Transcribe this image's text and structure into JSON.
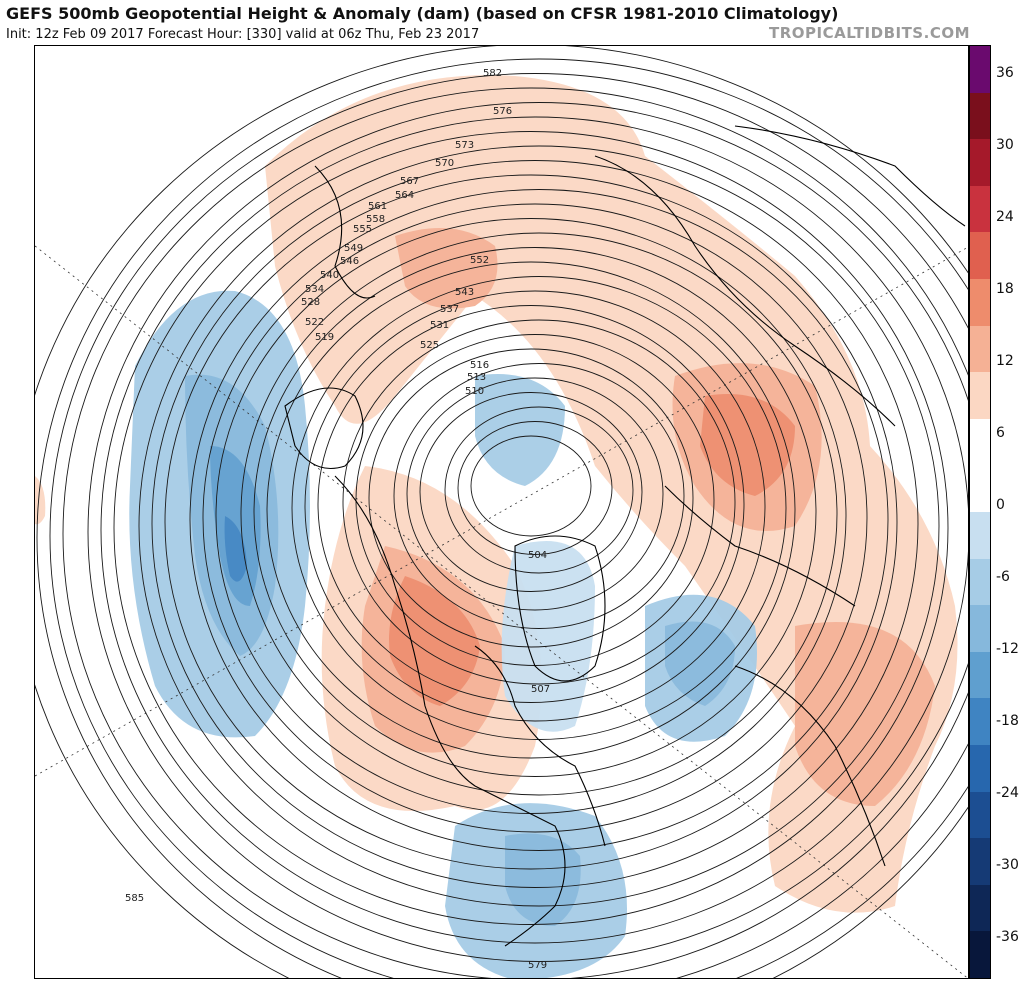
{
  "header": {
    "title": "GEFS 500mb Geopotential Height & Anomaly (dam) (based on CFSR 1981-2010 Climatology)",
    "subtitle": "Init: 12z Feb 09 2017   Forecast Hour: [330]   valid at 06z Thu, Feb 23 2017",
    "brand": "TROPICALTIDBITS.COM"
  },
  "colorbar": {
    "ticks": [
      "36",
      "30",
      "24",
      "18",
      "12",
      "6",
      "0",
      "-6",
      "-12",
      "-18",
      "-24",
      "-30",
      "-36"
    ],
    "colors": [
      "#6a0a6e",
      "#7a0f1c",
      "#a5192a",
      "#c9323e",
      "#e0604f",
      "#ee8c6c",
      "#f5b195",
      "#fbd7c3",
      "#ffffff",
      "#ffffff",
      "#c8dff0",
      "#a6cce6",
      "#86b8dc",
      "#5f9fcf",
      "#3f84c2",
      "#2767ae",
      "#1c4e92",
      "#153a75",
      "#0e2756",
      "#08173b"
    ]
  },
  "contour_labels": [
    {
      "text": "582"
    },
    {
      "text": "576"
    },
    {
      "text": "573"
    },
    {
      "text": "570"
    },
    {
      "text": "567"
    },
    {
      "text": "564"
    },
    {
      "text": "561"
    },
    {
      "text": "558"
    },
    {
      "text": "555"
    },
    {
      "text": "549"
    },
    {
      "text": "546"
    },
    {
      "text": "540"
    },
    {
      "text": "534"
    },
    {
      "text": "528"
    },
    {
      "text": "522"
    },
    {
      "text": "519"
    },
    {
      "text": "552"
    },
    {
      "text": "543"
    },
    {
      "text": "537"
    },
    {
      "text": "531"
    },
    {
      "text": "525"
    },
    {
      "text": "516"
    },
    {
      "text": "513"
    },
    {
      "text": "510"
    },
    {
      "text": "504"
    },
    {
      "text": "507"
    },
    {
      "text": "585"
    },
    {
      "text": "579"
    }
  ]
}
